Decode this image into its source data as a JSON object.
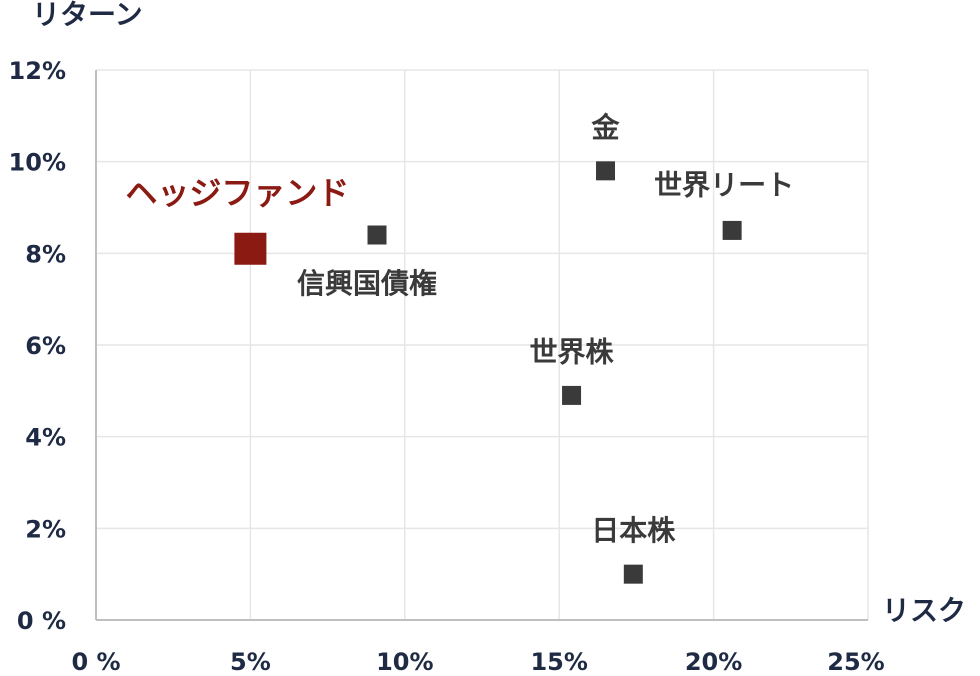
{
  "chart_data": {
    "type": "scatter",
    "xlabel": "リスク",
    "ylabel": "リターン",
    "xlim": [
      0,
      25
    ],
    "ylim": [
      0,
      12
    ],
    "x_ticks": [
      {
        "value": 0,
        "label": "0 %"
      },
      {
        "value": 5,
        "label": "5%"
      },
      {
        "value": 10,
        "label": "10%"
      },
      {
        "value": 15,
        "label": "15%"
      },
      {
        "value": 20,
        "label": "20%"
      },
      {
        "value": 25,
        "label": "25%"
      }
    ],
    "y_ticks": [
      {
        "value": 0,
        "label": "0 %"
      },
      {
        "value": 2,
        "label": "2%"
      },
      {
        "value": 4,
        "label": "4%"
      },
      {
        "value": 6,
        "label": "6%"
      },
      {
        "value": 8,
        "label": "8%"
      },
      {
        "value": 10,
        "label": "10%"
      },
      {
        "value": 12,
        "label": "12%"
      }
    ],
    "grid": true,
    "points": [
      {
        "label": "ヘッジファンド",
        "x": 5.0,
        "y": 8.1,
        "color": "#8b1a12",
        "highlight": true
      },
      {
        "label": "信興国債権",
        "x": 9.1,
        "y": 8.4,
        "color": "#3a3a3a",
        "highlight": false
      },
      {
        "label": "金",
        "x": 16.5,
        "y": 9.8,
        "color": "#3a3a3a",
        "highlight": false
      },
      {
        "label": "世界リート",
        "x": 20.6,
        "y": 8.5,
        "color": "#3a3a3a",
        "highlight": false
      },
      {
        "label": "世界株",
        "x": 15.4,
        "y": 4.9,
        "color": "#3a3a3a",
        "highlight": false
      },
      {
        "label": "日本株",
        "x": 17.4,
        "y": 1.0,
        "color": "#3a3a3a",
        "highlight": false
      }
    ]
  }
}
